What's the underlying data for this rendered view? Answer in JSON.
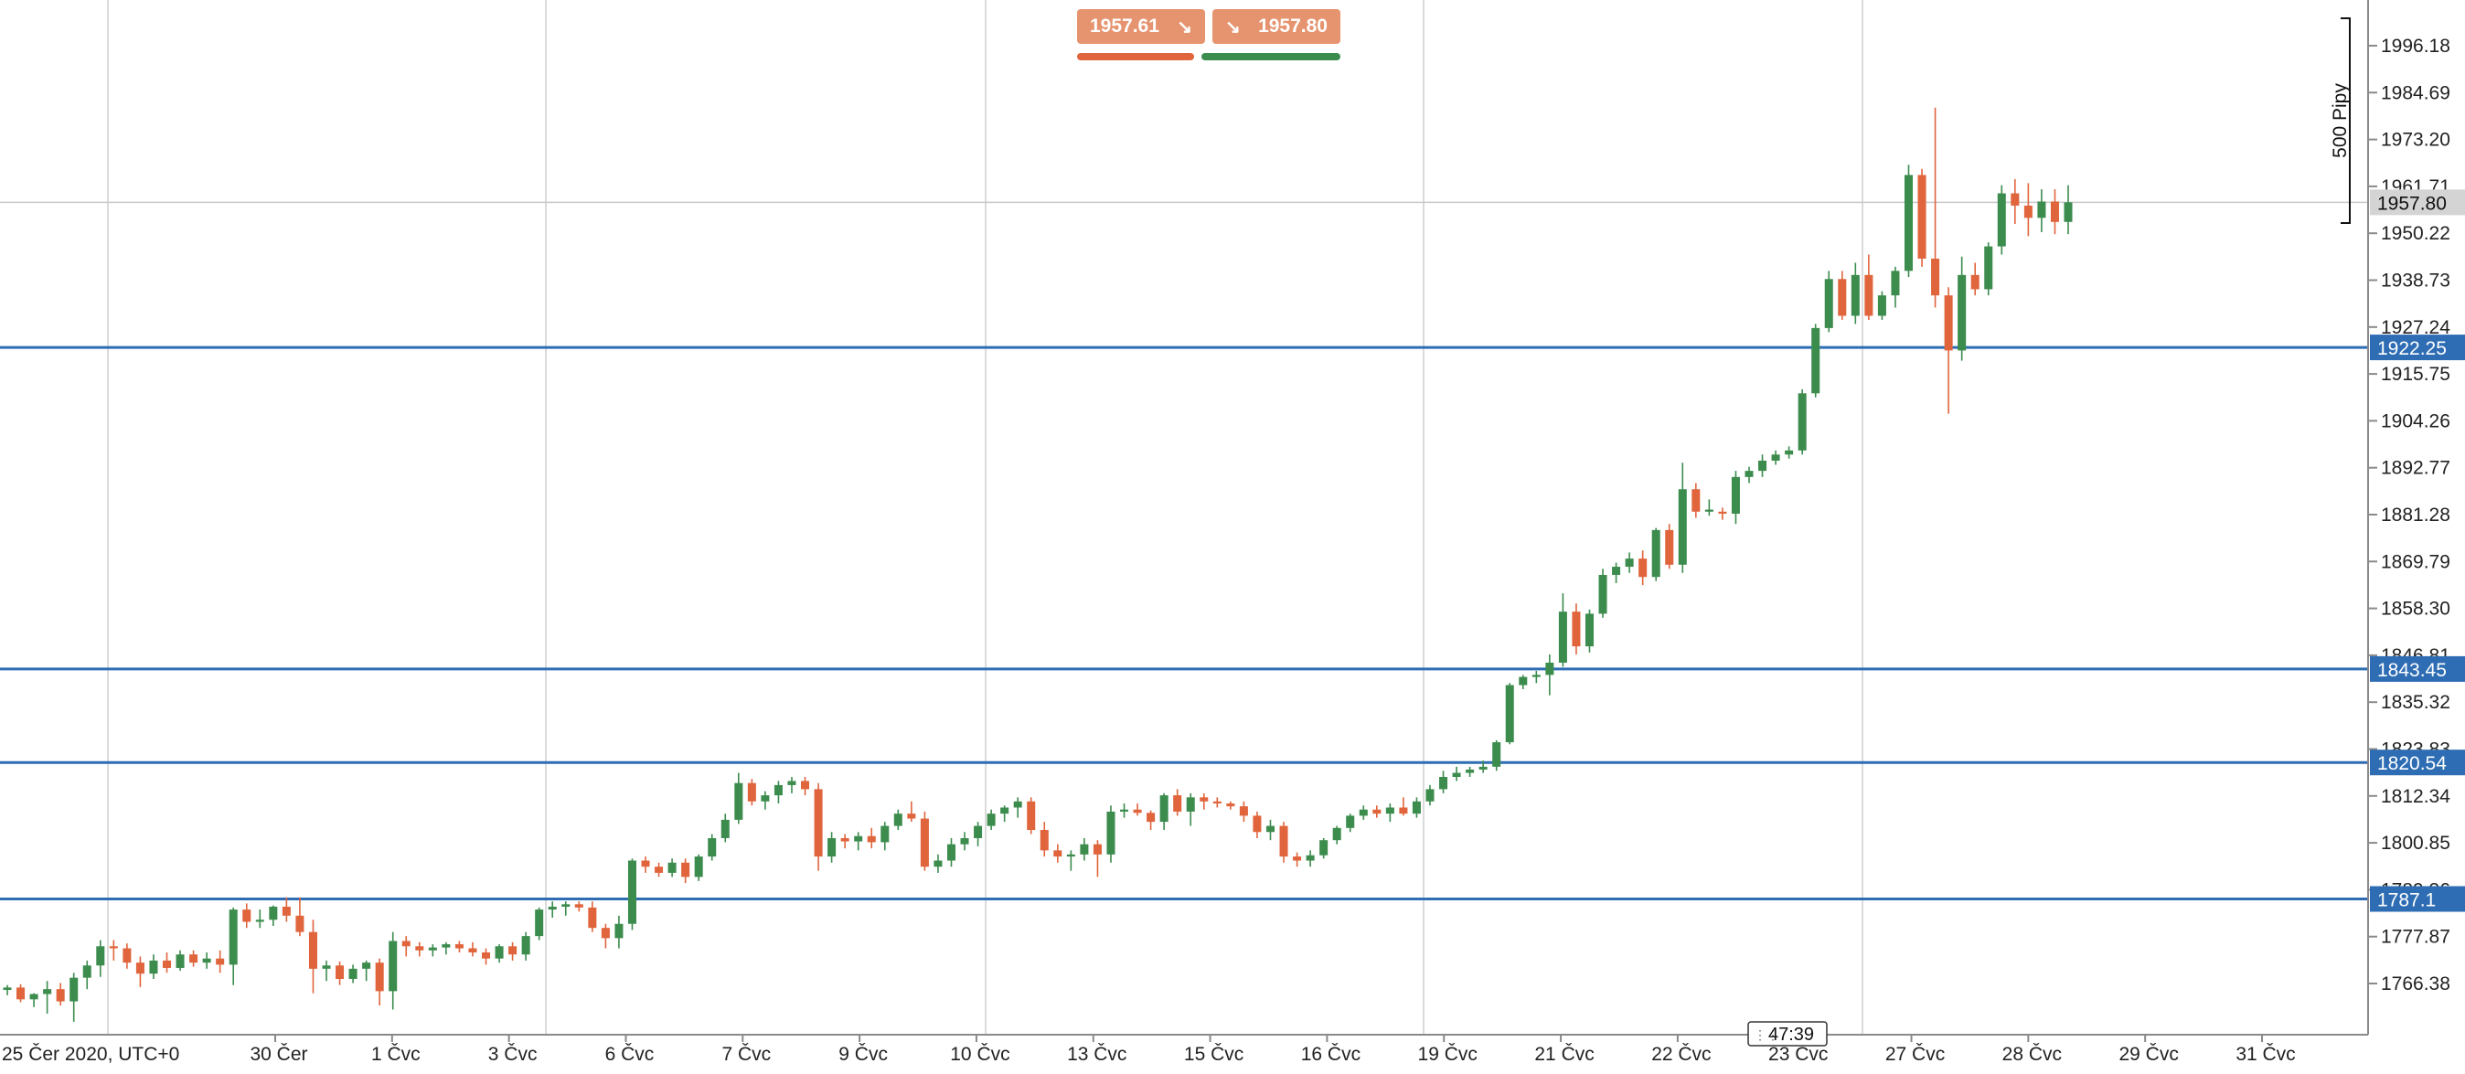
{
  "trade_panel": {
    "sell_price": "1957.61",
    "buy_price": "1957.80",
    "sell_icon": "arrow-down-right-icon",
    "buy_icon": "arrow-down-right-icon",
    "sell_color": "#e0643c",
    "buy_color": "#3c8c4e",
    "box_color": "#e6946f"
  },
  "pips_label": "500 Pipy",
  "timer": "47:39",
  "chart_data": {
    "type": "candlestick",
    "timezone_label": "25 Čer 2020, UTC+0",
    "x_tick_labels": [
      "30 Čer",
      "1 Čvc",
      "3 Čvc",
      "6 Čvc",
      "7 Čvc",
      "9 Čvc",
      "10 Čvc",
      "13 Čvc",
      "15 Čvc",
      "16 Čvc",
      "19 Čvc",
      "21 Čvc",
      "22 Čvc",
      "23 Čvc",
      "27 Čvc",
      "28 Čvc",
      "29 Čvc",
      "31 Čvc"
    ],
    "y_tick_labels": [
      "1996.18",
      "1984.69",
      "1973.20",
      "1961.71",
      "1950.22",
      "1938.73",
      "1927.24",
      "1915.75",
      "1904.26",
      "1892.77",
      "1881.28",
      "1869.79",
      "1858.30",
      "1846.81",
      "1835.32",
      "1823.83",
      "1812.34",
      "1800.85",
      "1789.36",
      "1777.87",
      "1766.38"
    ],
    "y_range": [
      1755,
      2002
    ],
    "current_price": "1957.80",
    "grid": true,
    "horizontal_levels": [
      {
        "price": 1922.25,
        "label": "1922.25"
      },
      {
        "price": 1843.45,
        "label": "1843.45"
      },
      {
        "price": 1820.54,
        "label": "1820.54"
      },
      {
        "price": 1787.1,
        "label": "1787.1"
      }
    ],
    "up_color": "#3c8c4e",
    "down_color": "#e0643c",
    "level_color": "#2e6db4",
    "candles": [
      [
        1764.8,
        1766.0,
        1763.5,
        1765.4
      ],
      [
        1765.4,
        1766.2,
        1761.8,
        1762.5
      ],
      [
        1762.5,
        1764.0,
        1760.6,
        1763.8
      ],
      [
        1763.8,
        1767.0,
        1759.0,
        1765.0
      ],
      [
        1765.0,
        1766.5,
        1761.0,
        1762.0
      ],
      [
        1762.0,
        1769.0,
        1757.0,
        1767.8
      ],
      [
        1767.8,
        1772.0,
        1765.0,
        1770.8
      ],
      [
        1770.8,
        1777.0,
        1768.0,
        1775.5
      ],
      [
        1775.5,
        1777.0,
        1772.0,
        1775.0
      ],
      [
        1775.0,
        1776.2,
        1770.0,
        1771.5
      ],
      [
        1771.5,
        1773.0,
        1765.5,
        1768.8
      ],
      [
        1768.8,
        1773.5,
        1767.5,
        1772.0
      ],
      [
        1772.0,
        1774.0,
        1769.0,
        1770.2
      ],
      [
        1770.2,
        1774.5,
        1769.5,
        1773.5
      ],
      [
        1773.5,
        1774.5,
        1770.5,
        1771.5
      ],
      [
        1771.5,
        1774.0,
        1770.0,
        1772.5
      ],
      [
        1772.5,
        1774.5,
        1769.0,
        1771.0
      ],
      [
        1771.0,
        1785.0,
        1766.0,
        1784.5
      ],
      [
        1784.5,
        1786.0,
        1780.0,
        1781.5
      ],
      [
        1781.5,
        1784.5,
        1780.0,
        1782.0
      ],
      [
        1782.0,
        1785.5,
        1780.5,
        1785.2
      ],
      [
        1785.2,
        1787.5,
        1781.5,
        1783.0
      ],
      [
        1783.0,
        1787.5,
        1778.0,
        1779.0
      ],
      [
        1779.0,
        1782.0,
        1764.0,
        1770.0
      ],
      [
        1770.0,
        1772.0,
        1767.0,
        1770.8
      ],
      [
        1770.8,
        1771.8,
        1766.0,
        1767.5
      ],
      [
        1767.5,
        1771.0,
        1766.5,
        1770.0
      ],
      [
        1770.0,
        1772.0,
        1767.0,
        1771.5
      ],
      [
        1771.5,
        1772.5,
        1761.0,
        1764.5
      ],
      [
        1764.5,
        1779.0,
        1760.0,
        1776.8
      ],
      [
        1776.8,
        1778.0,
        1773.0,
        1775.5
      ],
      [
        1775.5,
        1776.5,
        1773.0,
        1774.5
      ],
      [
        1774.5,
        1776.0,
        1773.0,
        1775.2
      ],
      [
        1775.2,
        1776.5,
        1773.5,
        1776.0
      ],
      [
        1776.0,
        1776.8,
        1774.0,
        1775.0
      ],
      [
        1775.0,
        1776.5,
        1773.0,
        1774.0
      ],
      [
        1774.0,
        1775.0,
        1771.0,
        1772.5
      ],
      [
        1772.5,
        1776.0,
        1771.5,
        1775.5
      ],
      [
        1775.5,
        1776.5,
        1772.0,
        1773.5
      ],
      [
        1773.5,
        1779.0,
        1772.0,
        1778.0
      ],
      [
        1778.0,
        1785.0,
        1777.0,
        1784.5
      ],
      [
        1784.5,
        1786.5,
        1782.5,
        1785.2
      ],
      [
        1785.2,
        1786.5,
        1783.0,
        1785.8
      ],
      [
        1785.8,
        1786.5,
        1784.0,
        1785.0
      ],
      [
        1785.0,
        1786.5,
        1779.0,
        1780.0
      ],
      [
        1780.0,
        1781.0,
        1775.0,
        1777.5
      ],
      [
        1777.5,
        1783.0,
        1775.0,
        1781.0
      ],
      [
        1781.0,
        1797.0,
        1779.5,
        1796.5
      ],
      [
        1796.5,
        1797.5,
        1793.5,
        1795.0
      ],
      [
        1795.0,
        1796.0,
        1792.5,
        1793.5
      ],
      [
        1793.5,
        1797.0,
        1792.5,
        1796.0
      ],
      [
        1796.0,
        1797.0,
        1791.0,
        1792.5
      ],
      [
        1792.5,
        1798.0,
        1791.5,
        1797.5
      ],
      [
        1797.5,
        1803.0,
        1796.5,
        1802.0
      ],
      [
        1802.0,
        1808.0,
        1801.0,
        1806.5
      ],
      [
        1806.5,
        1818.0,
        1805.5,
        1815.5
      ],
      [
        1815.5,
        1816.5,
        1810.0,
        1811.0
      ],
      [
        1811.0,
        1813.5,
        1809.0,
        1812.5
      ],
      [
        1812.5,
        1816.0,
        1810.5,
        1815.0
      ],
      [
        1815.0,
        1817.0,
        1813.0,
        1816.0
      ],
      [
        1816.0,
        1817.0,
        1812.5,
        1814.0
      ],
      [
        1814.0,
        1815.5,
        1794.0,
        1797.5
      ],
      [
        1797.5,
        1803.5,
        1796.0,
        1802.0
      ],
      [
        1802.0,
        1803.0,
        1799.5,
        1801.2
      ],
      [
        1801.2,
        1803.5,
        1799.0,
        1802.5
      ],
      [
        1802.5,
        1804.5,
        1799.5,
        1801.0
      ],
      [
        1801.0,
        1806.0,
        1799.0,
        1805.0
      ],
      [
        1805.0,
        1809.0,
        1804.0,
        1808.0
      ],
      [
        1808.0,
        1811.0,
        1806.0,
        1806.8
      ],
      [
        1806.8,
        1808.5,
        1794.0,
        1795.0
      ],
      [
        1795.0,
        1798.0,
        1793.5,
        1796.5
      ],
      [
        1796.5,
        1802.0,
        1795.0,
        1800.5
      ],
      [
        1800.5,
        1803.5,
        1799.0,
        1802.0
      ],
      [
        1802.0,
        1806.0,
        1800.0,
        1805.0
      ],
      [
        1805.0,
        1809.0,
        1804.0,
        1808.0
      ],
      [
        1808.0,
        1810.0,
        1806.0,
        1809.5
      ],
      [
        1809.5,
        1812.0,
        1807.0,
        1811.0
      ],
      [
        1811.0,
        1812.0,
        1803.0,
        1804.0
      ],
      [
        1804.0,
        1806.0,
        1797.5,
        1799.0
      ],
      [
        1799.0,
        1800.5,
        1796.0,
        1797.5
      ],
      [
        1797.5,
        1799.0,
        1794.0,
        1798.0
      ],
      [
        1798.0,
        1802.0,
        1796.5,
        1800.5
      ],
      [
        1800.5,
        1801.5,
        1792.5,
        1798.0
      ],
      [
        1798.0,
        1810.0,
        1796.0,
        1808.5
      ],
      [
        1808.5,
        1810.5,
        1807.0,
        1809.0
      ],
      [
        1809.0,
        1810.5,
        1807.5,
        1808.2
      ],
      [
        1808.2,
        1808.8,
        1804.0,
        1806.0
      ],
      [
        1806.0,
        1813.0,
        1804.0,
        1812.5
      ],
      [
        1812.5,
        1814.0,
        1807.5,
        1808.5
      ],
      [
        1808.5,
        1813.0,
        1805.0,
        1812.0
      ],
      [
        1812.0,
        1813.0,
        1809.0,
        1811.0
      ],
      [
        1811.0,
        1812.0,
        1809.5,
        1810.5
      ],
      [
        1810.5,
        1811.0,
        1809.0,
        1809.8
      ],
      [
        1809.8,
        1811.0,
        1806.0,
        1807.5
      ],
      [
        1807.5,
        1808.5,
        1802.0,
        1803.5
      ],
      [
        1803.5,
        1806.5,
        1801.5,
        1805.0
      ],
      [
        1805.0,
        1806.0,
        1796.0,
        1797.5
      ],
      [
        1797.5,
        1798.5,
        1795.0,
        1796.5
      ],
      [
        1796.5,
        1799.0,
        1795.0,
        1797.8
      ],
      [
        1797.8,
        1802.0,
        1797.0,
        1801.5
      ],
      [
        1801.5,
        1805.0,
        1800.5,
        1804.5
      ],
      [
        1804.5,
        1808.0,
        1803.5,
        1807.5
      ],
      [
        1807.5,
        1810.0,
        1806.5,
        1809.0
      ],
      [
        1809.0,
        1810.0,
        1807.0,
        1808.0
      ],
      [
        1808.0,
        1810.5,
        1806.0,
        1809.5
      ],
      [
        1809.5,
        1812.0,
        1807.5,
        1808.0
      ],
      [
        1808.0,
        1812.0,
        1807.0,
        1811.0
      ],
      [
        1811.0,
        1815.0,
        1810.0,
        1814.0
      ],
      [
        1814.0,
        1818.5,
        1813.0,
        1817.0
      ],
      [
        1817.0,
        1819.5,
        1816.0,
        1818.0
      ],
      [
        1818.0,
        1819.5,
        1817.0,
        1818.8
      ],
      [
        1818.8,
        1821.0,
        1818.0,
        1819.5
      ],
      [
        1819.5,
        1826.0,
        1818.5,
        1825.5
      ],
      [
        1825.5,
        1840.0,
        1825.0,
        1839.5
      ],
      [
        1839.5,
        1842.0,
        1838.5,
        1841.5
      ],
      [
        1841.5,
        1843.0,
        1840.0,
        1842.0
      ],
      [
        1842.0,
        1847.0,
        1837.0,
        1845.0
      ],
      [
        1845.0,
        1862.0,
        1844.0,
        1857.5
      ],
      [
        1857.5,
        1859.5,
        1847.0,
        1849.0
      ],
      [
        1849.0,
        1858.0,
        1847.5,
        1857.0
      ],
      [
        1857.0,
        1868.0,
        1856.0,
        1866.5
      ],
      [
        1866.5,
        1869.5,
        1864.5,
        1868.5
      ],
      [
        1868.5,
        1872.0,
        1867.0,
        1870.5
      ],
      [
        1870.5,
        1872.5,
        1864.0,
        1866.0
      ],
      [
        1866.0,
        1878.0,
        1865.0,
        1877.5
      ],
      [
        1877.5,
        1879.0,
        1868.0,
        1869.0
      ],
      [
        1869.0,
        1894.0,
        1867.0,
        1887.5
      ],
      [
        1887.5,
        1889.0,
        1880.5,
        1882.0
      ],
      [
        1882.0,
        1885.0,
        1881.0,
        1882.5
      ],
      [
        1882.0,
        1883.0,
        1880.0,
        1881.5
      ],
      [
        1881.5,
        1892.0,
        1879.0,
        1890.5
      ],
      [
        1890.5,
        1893.0,
        1889.0,
        1892.0
      ],
      [
        1892.0,
        1896.0,
        1890.5,
        1894.5
      ],
      [
        1894.5,
        1897.0,
        1893.5,
        1896.0
      ],
      [
        1896.0,
        1898.0,
        1895.0,
        1897.0
      ],
      [
        1897.0,
        1912.0,
        1896.0,
        1911.0
      ],
      [
        1911.0,
        1928.0,
        1910.0,
        1927.0
      ],
      [
        1927.0,
        1941.0,
        1926.0,
        1939.0
      ],
      [
        1939.0,
        1941.0,
        1929.0,
        1930.0
      ],
      [
        1930.0,
        1943.0,
        1928.0,
        1940.0
      ],
      [
        1940.0,
        1945.0,
        1929.0,
        1930.0
      ],
      [
        1930.0,
        1936.0,
        1929.0,
        1935.0
      ],
      [
        1935.0,
        1942.0,
        1932.0,
        1941.0
      ],
      [
        1941.0,
        1967.0,
        1939.5,
        1964.5
      ],
      [
        1964.5,
        1966.0,
        1942.0,
        1944.0
      ],
      [
        1944.0,
        1981.0,
        1932.0,
        1935.0
      ],
      [
        1935.0,
        1937.0,
        1906.0,
        1921.5
      ],
      [
        1921.5,
        1944.5,
        1919.0,
        1940.0
      ],
      [
        1940.0,
        1943.0,
        1935.0,
        1936.5
      ],
      [
        1936.5,
        1948.0,
        1935.0,
        1947.0
      ],
      [
        1947.0,
        1962.0,
        1945.0,
        1960.0
      ],
      [
        1960.0,
        1963.5,
        1952.5,
        1957.0
      ],
      [
        1957.0,
        1962.5,
        1949.5,
        1954.0
      ],
      [
        1954.0,
        1961.0,
        1950.5,
        1958.0
      ],
      [
        1958.0,
        1961.0,
        1950.0,
        1953.0
      ],
      [
        1953.0,
        1962.0,
        1950.0,
        1957.8
      ]
    ]
  }
}
